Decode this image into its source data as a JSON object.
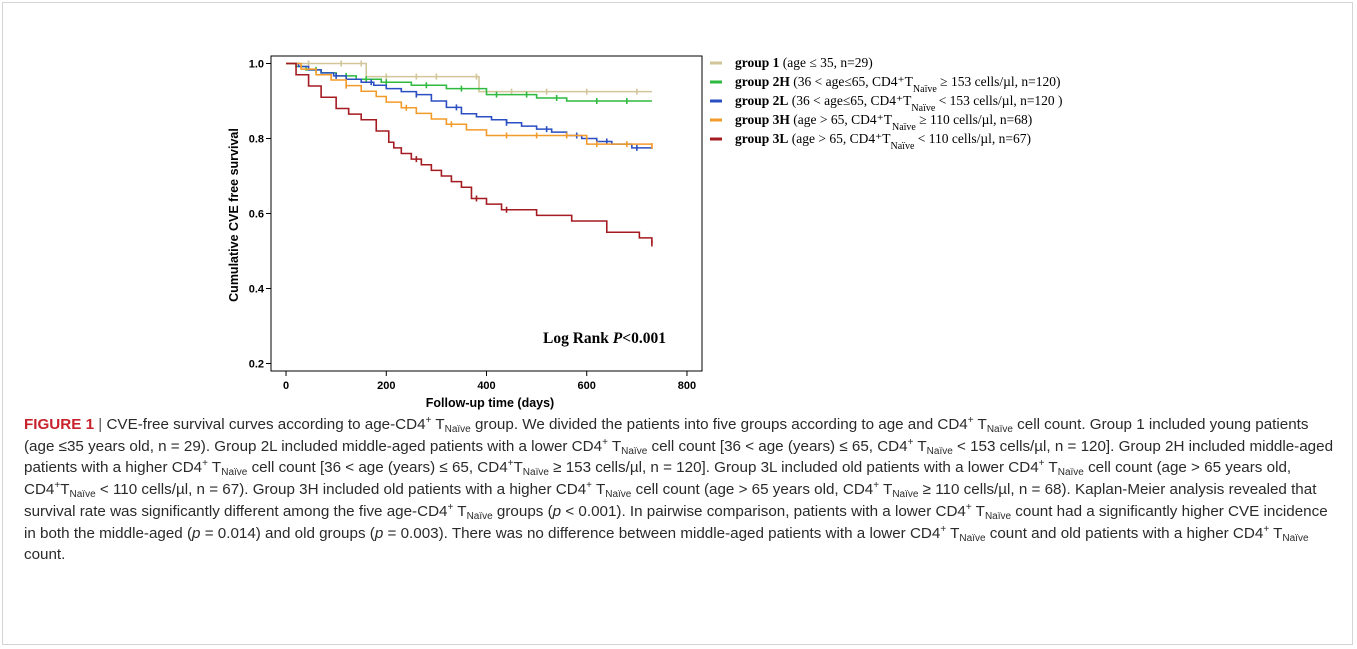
{
  "figure": {
    "label": "FIGURE 1",
    "separator": "|",
    "caption": "CVE-free survival curves according to age-CD4<sup>+</sup> T<sub>Naïve</sub> group. We divided the patients into five groups according to age and CD4<sup>+</sup> T<sub>Naïve</sub> cell count. Group 1 included young patients (age ≤35 years old, n = 29). Group 2L included middle-aged patients with a lower CD4<sup>+</sup> T<sub>Naïve</sub> cell count [36 &lt; age (years) ≤ 65, CD4<sup>+</sup> T<sub>Naïve</sub> &lt; 153 cells/µl, n = 120]. Group 2H included middle-aged patients with a higher CD4<sup>+</sup> T<sub>Naïve</sub> cell count [36 &lt; age (years) ≤ 65, CD4<sup>+</sup>T<sub>Naïve</sub> ≥ 153 cells/µl, n = 120]. Group 3L included old patients with a lower CD4<sup>+</sup> T<sub>Naïve</sub> cell count (age &gt; 65 years old, CD4<sup>+</sup>T<sub>Naïve</sub> &lt; 110 cells/µl, n = 67). Group 3H included old patients with a higher CD4<sup>+</sup> T<sub>Naïve</sub> cell count (age &gt; 65 years old, CD4<sup>+</sup> T<sub>Naïve</sub> ≥ 110 cells/µl, n = 68). Kaplan-Meier analysis revealed that survival rate was significantly different among the five age-CD4<sup>+</sup> T<sub>Naïve</sub> groups (<em>p</em> &lt; 0.001). In pairwise comparison, patients with a lower CD4<sup>+</sup> T<sub>Naïve</sub> count had a significantly higher CVE incidence in both the middle-aged (<em>p</em> = 0.014) and old groups (<em>p</em> = 0.003). There was no difference between middle-aged patients with a lower CD4<sup>+</sup> T<sub>Naïve</sub> count and old patients with a higher CD4<sup>+</sup> T<sub>Naïve</sub> count."
  },
  "chart_data": {
    "type": "line",
    "step": true,
    "xlabel": "Follow-up time (days)",
    "ylabel": "Cumulative CVE free survival",
    "xlim": [
      -30,
      830
    ],
    "ylim": [
      0.18,
      1.02
    ],
    "xticks": [
      0,
      200,
      400,
      600,
      800
    ],
    "yticks": [
      0.2,
      0.4,
      0.6,
      0.8,
      1.0
    ],
    "xtick_labels": [
      "0",
      "200",
      "400",
      "600",
      "800"
    ],
    "ytick_labels": [
      "0.2",
      "0.4",
      "0.6",
      "0.8",
      "1.0"
    ],
    "annotation": {
      "prefix": "Log Rank ",
      "italic": "P",
      "suffix": "<0.001"
    },
    "legend_position": "right",
    "series": [
      {
        "name": "group 1",
        "legend_bold": "group 1",
        "legend_rest": " (age ≤ 35, n=29)",
        "color": "#d2c59a",
        "x": [
          0,
          30,
          160,
          180,
          385,
          390,
          730
        ],
        "y": [
          1.0,
          1.0,
          0.965,
          0.965,
          0.925,
          0.925,
          0.925
        ],
        "censored_x": [
          45,
          110,
          150,
          200,
          260,
          300,
          380,
          450,
          520,
          600,
          700
        ]
      },
      {
        "name": "group 2H",
        "legend_bold": "group 2H",
        "legend_rest": " (36 < age≤65, CD4⁺T_Naïve ≥ 153 cells/µl, n=120)",
        "color": "#2fba3f",
        "x": [
          0,
          20,
          40,
          70,
          100,
          140,
          190,
          250,
          320,
          400,
          500,
          560,
          730
        ],
        "y": [
          1.0,
          0.992,
          0.983,
          0.975,
          0.967,
          0.958,
          0.95,
          0.942,
          0.933,
          0.917,
          0.908,
          0.9,
          0.9
        ],
        "censored_x": [
          60,
          120,
          160,
          200,
          280,
          350,
          420,
          480,
          540,
          620,
          680
        ]
      },
      {
        "name": "group 2L",
        "legend_bold": "group 2L",
        "legend_rest": " (36 < age≤65, CD4⁺T_Naïve < 153 cells/µl, n=120 )",
        "color": "#2b4fc2",
        "x": [
          0,
          25,
          45,
          70,
          95,
          120,
          150,
          175,
          200,
          230,
          260,
          290,
          320,
          350,
          380,
          410,
          440,
          470,
          500,
          530,
          560,
          590,
          620,
          650,
          690,
          730
        ],
        "y": [
          1.0,
          0.992,
          0.983,
          0.975,
          0.967,
          0.958,
          0.95,
          0.942,
          0.933,
          0.925,
          0.917,
          0.9,
          0.883,
          0.866,
          0.858,
          0.85,
          0.842,
          0.833,
          0.825,
          0.817,
          0.808,
          0.8,
          0.792,
          0.785,
          0.775,
          0.772
        ],
        "censored_x": [
          100,
          170,
          260,
          340,
          440,
          520,
          580,
          640,
          700
        ]
      },
      {
        "name": "group 3H",
        "legend_bold": "group 3H",
        "legend_rest": " (age > 65, CD4⁺T_Naïve ≥ 110 cells/µl, n=68)",
        "color": "#f39b2a",
        "x": [
          0,
          30,
          60,
          90,
          120,
          150,
          180,
          200,
          230,
          260,
          290,
          320,
          360,
          400,
          600,
          730
        ],
        "y": [
          1.0,
          0.985,
          0.97,
          0.956,
          0.941,
          0.926,
          0.912,
          0.897,
          0.882,
          0.867,
          0.852,
          0.838,
          0.823,
          0.808,
          0.785,
          0.78
        ],
        "censored_x": [
          120,
          240,
          330,
          440,
          500,
          560,
          620,
          680,
          730
        ]
      },
      {
        "name": "group 3L",
        "legend_bold": "group 3L",
        "legend_rest": " (age > 65, CD4⁺T_Naïve < 110 cells/µl, n=67)",
        "color": "#a41b21",
        "x": [
          0,
          20,
          45,
          70,
          100,
          125,
          150,
          180,
          205,
          215,
          230,
          250,
          270,
          290,
          310,
          330,
          350,
          370,
          400,
          430,
          500,
          570,
          640,
          705,
          730
        ],
        "y": [
          1.0,
          0.97,
          0.94,
          0.91,
          0.88,
          0.865,
          0.85,
          0.82,
          0.79,
          0.775,
          0.76,
          0.745,
          0.73,
          0.715,
          0.7,
          0.685,
          0.67,
          0.64,
          0.625,
          0.61,
          0.595,
          0.58,
          0.55,
          0.535,
          0.52
        ],
        "censored_x": [
          260,
          380,
          440,
          730
        ]
      }
    ]
  }
}
